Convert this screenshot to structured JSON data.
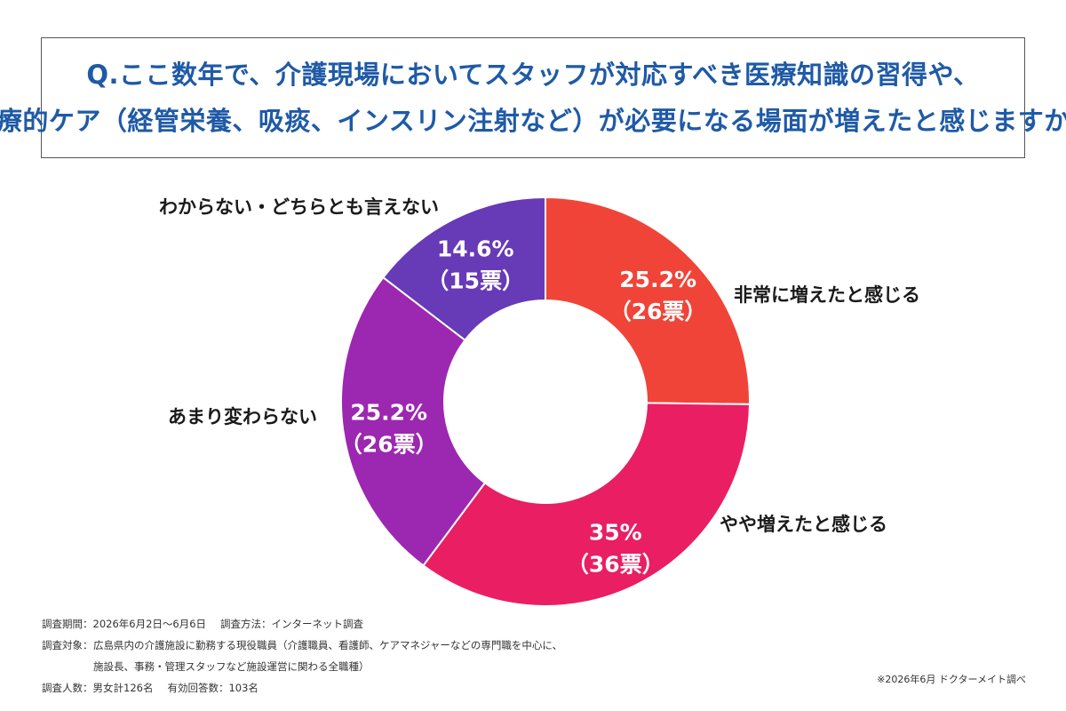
{
  "question": {
    "line1": "Q.ここ数年で、介護現場においてスタッフが対応すべき医療知識の習得や、",
    "line2": "医療的ケア（経管栄養、吸痰、インスリン注射など）が必要になる場面が増えたと感じますか。"
  },
  "chart_data": {
    "type": "pie",
    "donut": true,
    "total_votes": 103,
    "slices": [
      {
        "category": "非常に増えたと感じる",
        "percent": 25.2,
        "votes": 26,
        "percent_label": "25.2%",
        "votes_label": "（26票）",
        "color": "#f04438"
      },
      {
        "category": "やや増えたと感じる",
        "percent": 35,
        "votes": 36,
        "percent_label": "35%",
        "votes_label": "（36票）",
        "color": "#e91e63"
      },
      {
        "category": "あまり変わらない",
        "percent": 25.2,
        "votes": 26,
        "percent_label": "25.2%",
        "votes_label": "（26票）",
        "color": "#9c27b0"
      },
      {
        "category": "わからない・どちらとも言えない",
        "percent": 14.6,
        "votes": 15,
        "percent_label": "14.6%",
        "votes_label": "（15票）",
        "color": "#673ab7"
      }
    ]
  },
  "notes": {
    "period_key": "調査期間：",
    "period_value": "2026年6月2日〜6月6日",
    "method_key": "調査方法：",
    "method_value": "インターネット調査",
    "target_key": "調査対象：",
    "target_value1": "広島県内の介護施設に勤務する現役職員（介護職員、看護師、ケアマネジャーなどの専門職を中心に、",
    "target_value2": "施設長、事務・管理スタッフなど施設運営に関わる全職種）",
    "count_key": "調査人数：",
    "count_value": "男女計126名",
    "valid_key": "有効回答数：",
    "valid_value": "103名"
  },
  "source": "※2026年6月 ドクターメイト調べ",
  "colors": {
    "question_text": "#1f5aa6",
    "border": "#555555"
  }
}
